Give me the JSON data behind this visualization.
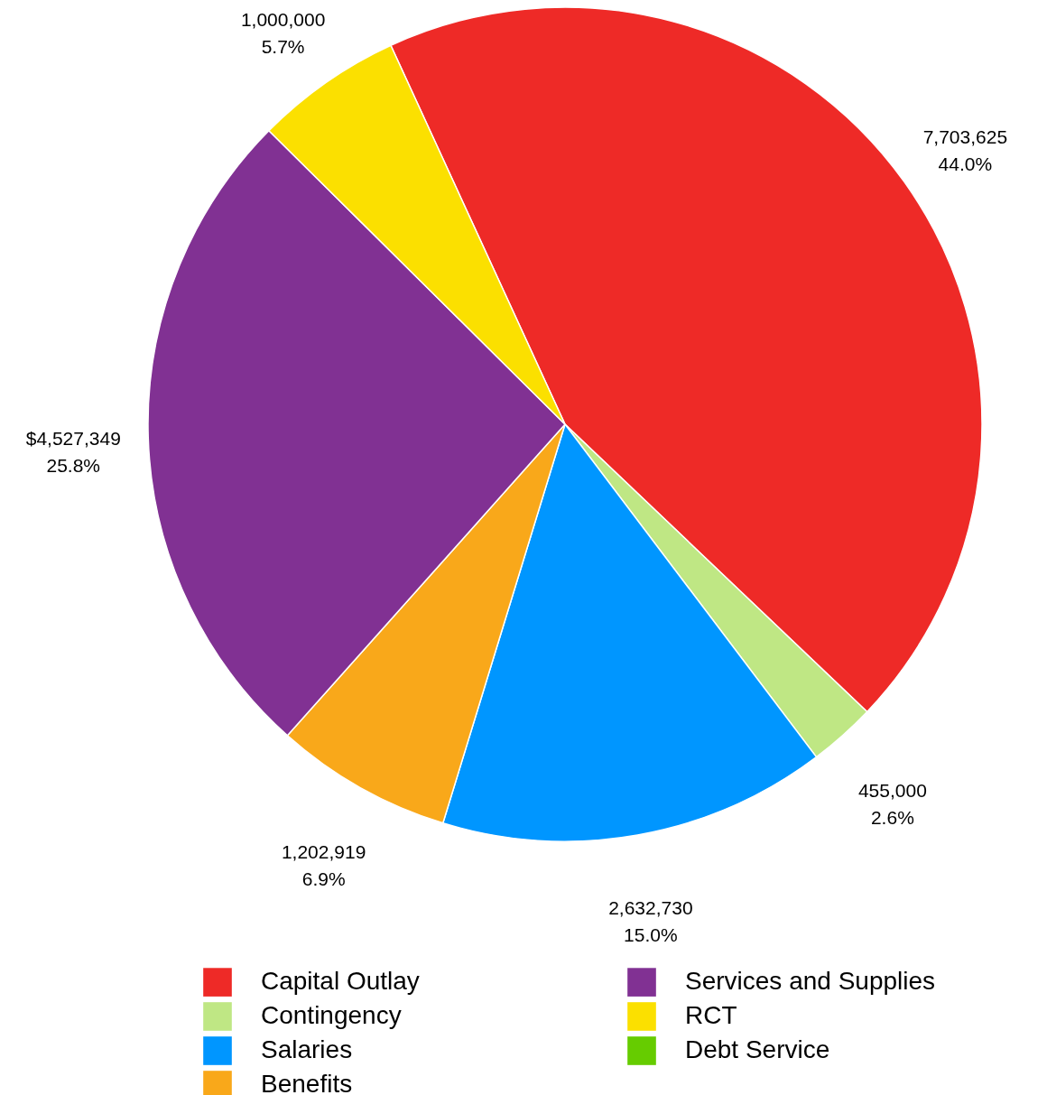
{
  "chart_data": {
    "type": "pie",
    "categories": [
      "Capital Outlay",
      "Contingency",
      "Salaries",
      "Benefits",
      "Services and Supplies",
      "RCT",
      "Debt Service"
    ],
    "values": [
      7703625,
      455000,
      2632730,
      1202919,
      4527349,
      1000000,
      0
    ],
    "colors": [
      "#ee2a27",
      "#bfe784",
      "#0096ff",
      "#f9a81a",
      "#813193",
      "#fbe000",
      "#66cc00"
    ],
    "value_labels": [
      "7,703,625\n44.0%",
      "455,000\n2.6%",
      "2,632,730\n15.0%",
      "1,202,919\n6.9%",
      "$4,527,349\n25.8%",
      "1,000,000\n5.7%",
      null
    ],
    "legend": "bottom"
  }
}
